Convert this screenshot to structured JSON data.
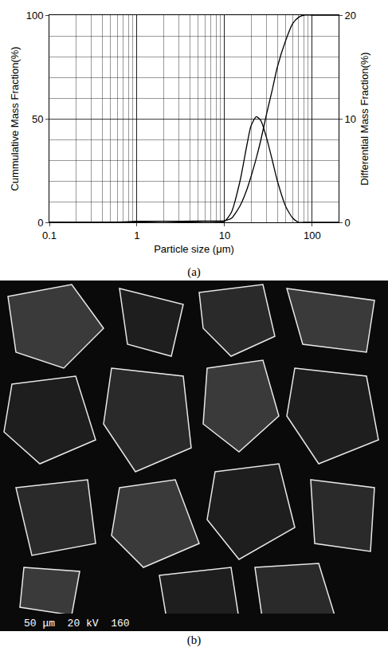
{
  "chart_data": {
    "type": "line",
    "x_label": "Particle size (μm)",
    "y_label": "Cummulative Mass Fraction(%)",
    "y2_label": "Differential Mass Fraction(%)",
    "log": "x",
    "grid": true,
    "x": [
      0.1,
      0.5,
      1,
      2,
      5,
      8,
      10,
      12,
      15,
      18,
      20,
      23,
      26,
      30,
      35,
      40,
      50,
      60,
      70,
      80,
      100,
      200
    ],
    "series": [
      {
        "name": "Cummulative Mass Fraction",
        "color": "#000000",
        "line_style": "solid",
        "values": [
          0,
          0,
          0.2,
          0.5,
          0.6,
          0.6,
          0.8,
          2,
          8,
          16,
          22,
          31,
          40,
          52,
          64,
          75,
          88,
          96,
          99,
          100,
          100,
          100
        ]
      },
      {
        "name": "Differential Mass Fraction",
        "color": "#000000",
        "line_style": "solid",
        "axis": "y2",
        "values": [
          0,
          0,
          0.1,
          0.1,
          0,
          0,
          0.1,
          1,
          4,
          7.5,
          9.3,
          10.2,
          9.8,
          8.2,
          6,
          4,
          1.5,
          0.4,
          0,
          0,
          0,
          0
        ]
      }
    ],
    "xlim": [
      0.1,
      200
    ],
    "xticks": [
      0.1,
      1,
      10,
      100
    ],
    "ylim": [
      0,
      100
    ],
    "yticks": [
      0,
      50,
      100
    ],
    "y2lim": [
      0,
      20
    ],
    "y2ticks": [
      0,
      10,
      20
    ]
  },
  "caption_a": "(a)",
  "micrograph": {
    "label": "50 μm  20 kV  160",
    "caption": "(b)"
  }
}
